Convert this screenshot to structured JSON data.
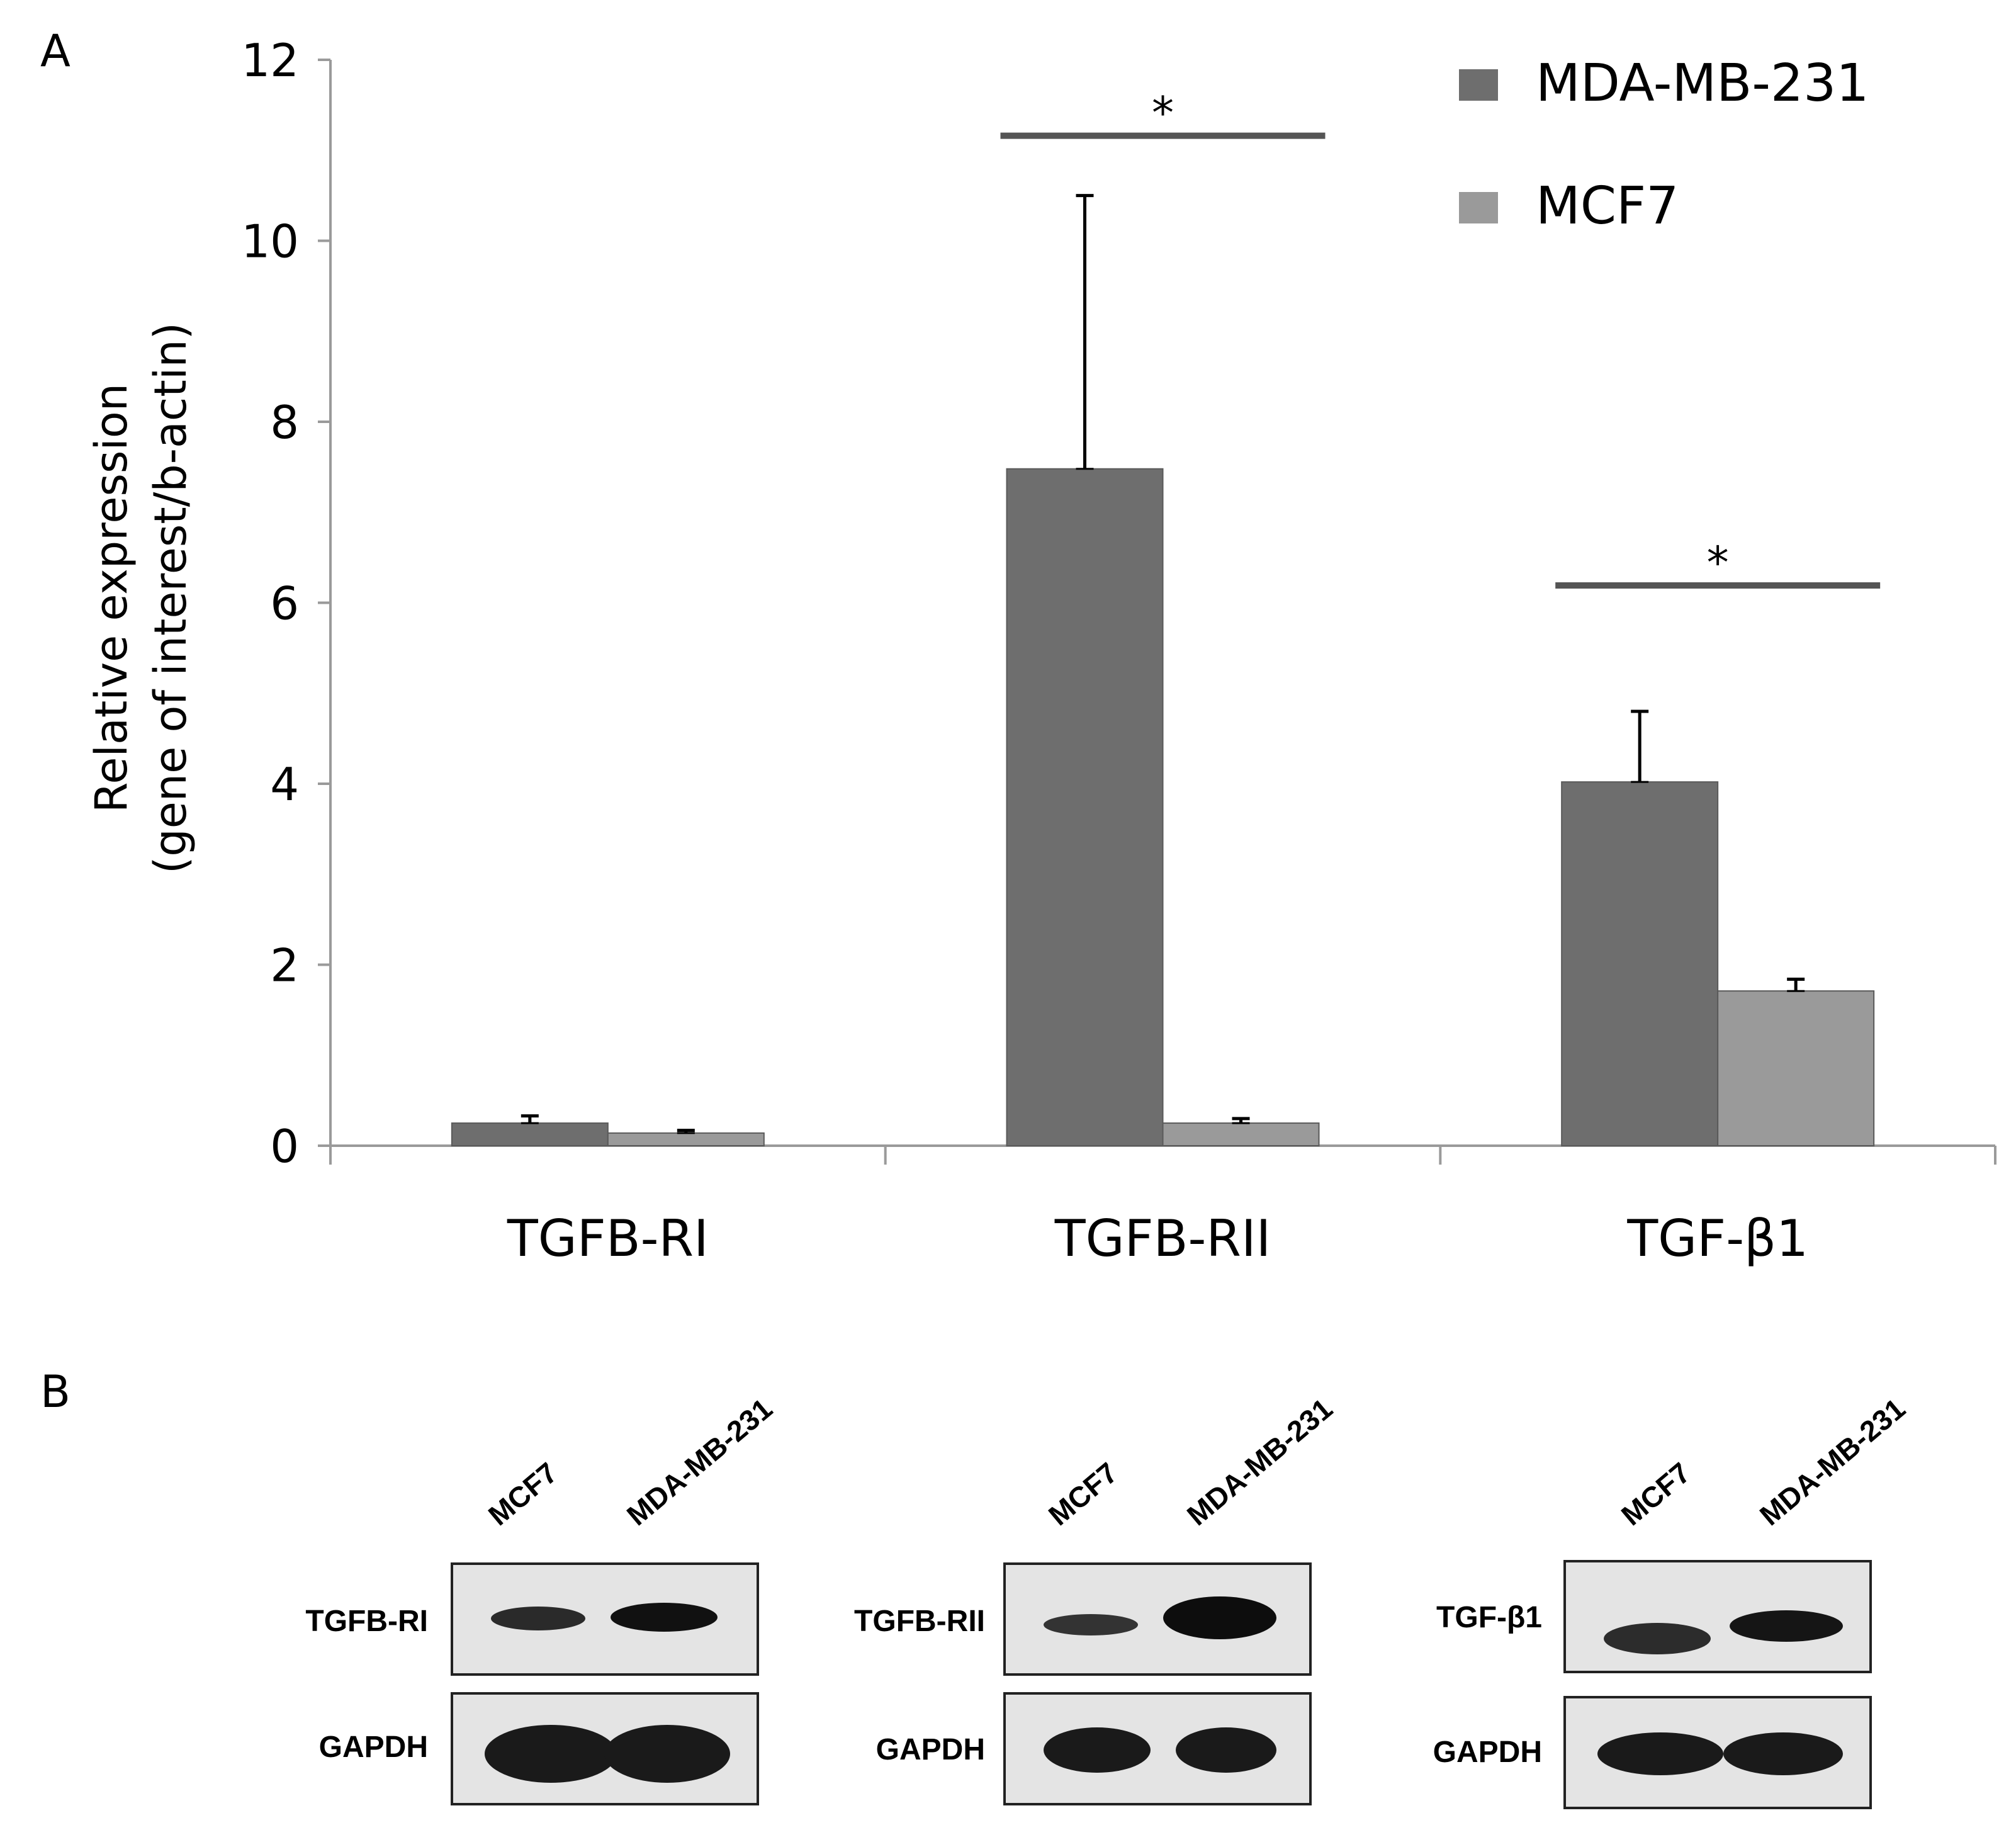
{
  "panel_a_label": "A",
  "panel_b_label": "B",
  "chart_data": {
    "type": "bar",
    "categories": [
      "TGFB-RI",
      "TGFB-RII",
      "TGF-β1"
    ],
    "series": [
      {
        "name": "MDA-MB-231",
        "values": [
          0.25,
          7.48,
          4.02
        ],
        "errors": [
          0.08,
          3.02,
          0.78
        ],
        "color": "#6e6e6e"
      },
      {
        "name": "MCF7",
        "values": [
          0.14,
          0.25,
          1.71
        ],
        "errors": [
          0.03,
          0.05,
          0.13
        ],
        "color": "#9a9a9a"
      }
    ],
    "ylabel_line1": "Relative expression",
    "ylabel_line2": "(gene of interest/b-actin)",
    "xlabel": "",
    "ylim": [
      0,
      12
    ],
    "yticks": [
      0,
      2,
      4,
      6,
      8,
      10,
      12
    ],
    "significance": [
      {
        "category": "TGFB-RII",
        "label": "*"
      },
      {
        "category": "TGF-β1",
        "label": "*"
      }
    ],
    "legend_position": "top-right"
  },
  "western_blot": {
    "lanes": [
      "MCF7",
      "MDA-MB-231"
    ],
    "blots": [
      {
        "protein": "TGFB-RI",
        "loading": "GAPDH"
      },
      {
        "protein": "TGFB-RII",
        "loading": "GAPDH"
      },
      {
        "protein": "TGF-β1",
        "loading": "GAPDH"
      }
    ]
  }
}
